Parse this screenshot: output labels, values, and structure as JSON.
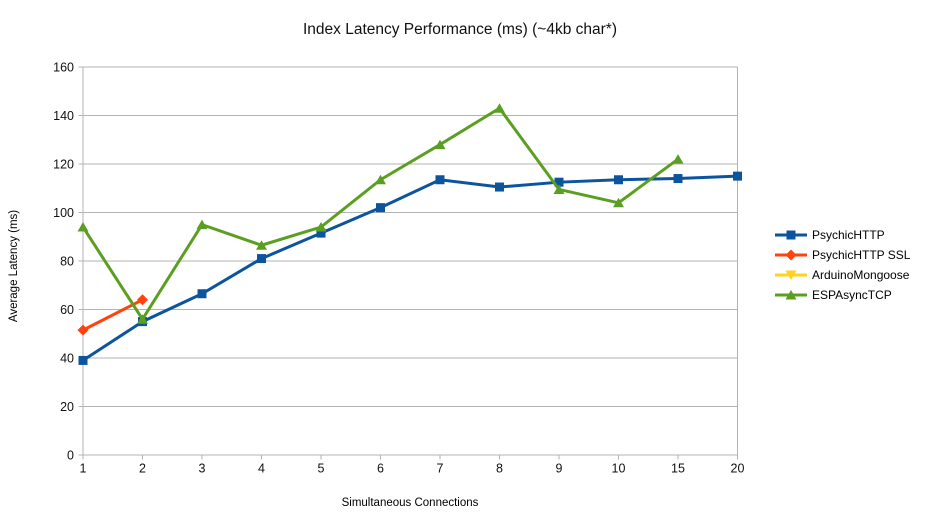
{
  "title": "Index Latency Performance (ms) (~4kb char*)",
  "chart_data": {
    "type": "line",
    "title": "Index Latency Performance (ms) (~4kb char*)",
    "xlabel": "Simultaneous Connections",
    "ylabel": "Average Latency (ms)",
    "categories": [
      "1",
      "2",
      "3",
      "4",
      "5",
      "6",
      "7",
      "8",
      "9",
      "10",
      "15",
      "20"
    ],
    "ylim": [
      0,
      160
    ],
    "ytick_step": 20,
    "grid": "horizontal",
    "legend_position": "right",
    "series": [
      {
        "name": "PsychicHTTP",
        "color": "#0d549e",
        "marker": "square",
        "values": [
          39,
          55,
          66.5,
          81,
          91.5,
          102,
          113.5,
          110.5,
          112.5,
          113.5,
          114,
          115
        ]
      },
      {
        "name": "PsychicHTTP SSL",
        "color": "#ff420e",
        "marker": "diamond",
        "values": [
          51.5,
          64,
          null,
          null,
          null,
          null,
          null,
          null,
          null,
          null,
          null,
          null
        ]
      },
      {
        "name": "ArduinoMongoose",
        "color": "#ffd320",
        "marker": "triangle-down",
        "values": [
          null,
          null,
          null,
          null,
          null,
          null,
          null,
          null,
          null,
          null,
          null,
          null
        ]
      },
      {
        "name": "ESPAsyncTCP",
        "color": "#5b9f22",
        "marker": "triangle-up",
        "values": [
          94,
          56,
          95,
          86.5,
          94,
          113.5,
          128,
          143,
          109.5,
          104,
          122,
          null
        ]
      }
    ]
  },
  "colors": {
    "gridline": "#b3b3b3",
    "axis": "#b3b3b3",
    "text": "#111111",
    "background": "#ffffff"
  }
}
